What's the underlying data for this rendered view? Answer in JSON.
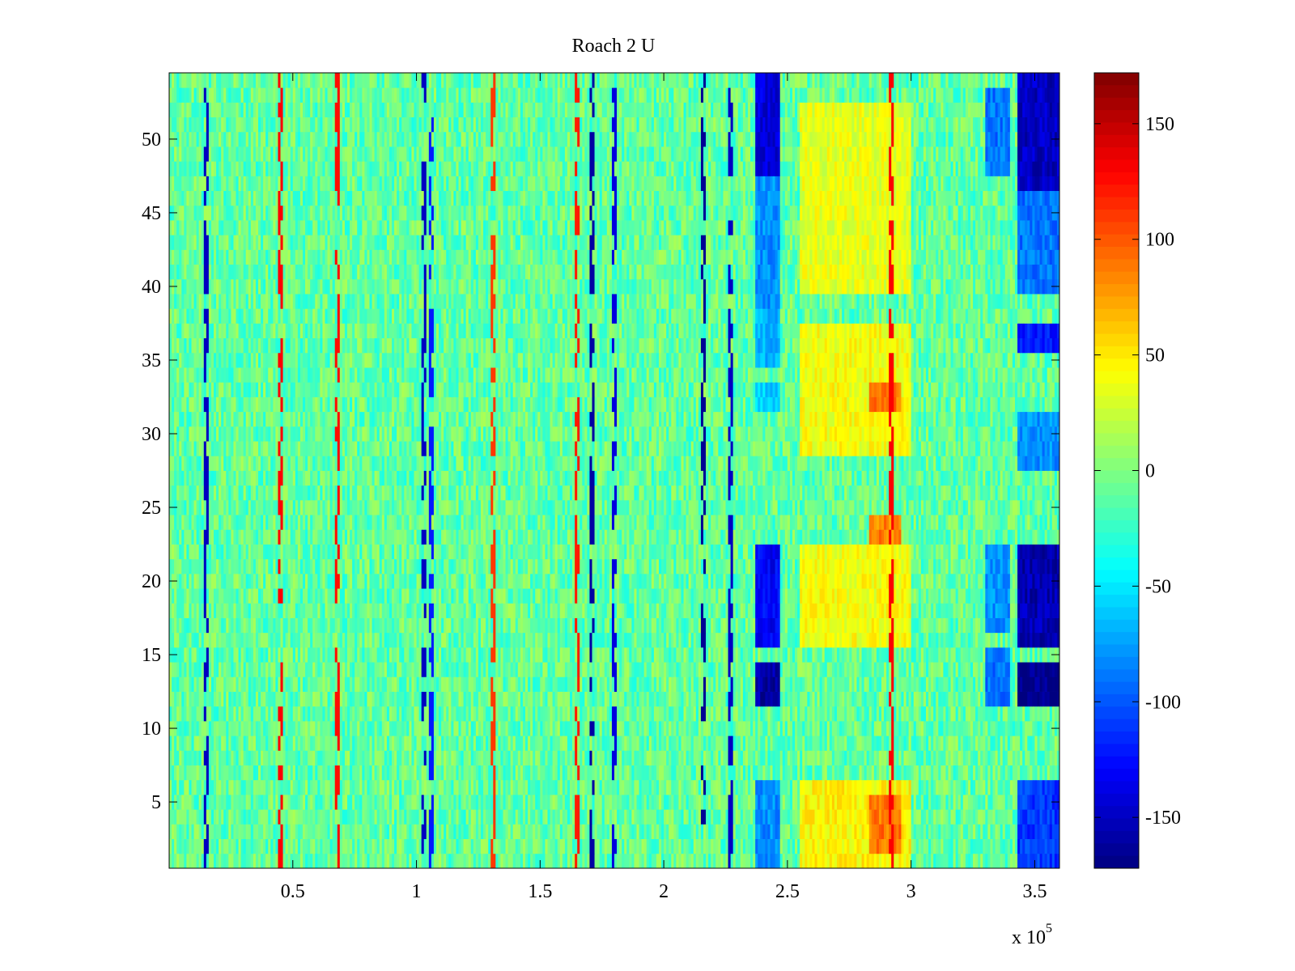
{
  "chart_data": {
    "type": "heatmap",
    "title": "Roach 2 U",
    "xlabel": "",
    "ylabel": "",
    "x_multiplier_label": "x 10",
    "x_multiplier_exp": "5",
    "xlim": [
      0,
      360000
    ],
    "ylim": [
      0.5,
      54.5
    ],
    "rows": 54,
    "columns": 360,
    "colormap": "jet",
    "clim": [
      -172,
      172
    ],
    "x_ticks": [
      {
        "value": 50000,
        "label": "0.5"
      },
      {
        "value": 100000,
        "label": "1"
      },
      {
        "value": 150000,
        "label": "1.5"
      },
      {
        "value": 200000,
        "label": "2"
      },
      {
        "value": 250000,
        "label": "2.5"
      },
      {
        "value": 300000,
        "label": "3"
      },
      {
        "value": 350000,
        "label": "3.5"
      }
    ],
    "y_ticks": [
      {
        "value": 5,
        "label": "5"
      },
      {
        "value": 10,
        "label": "10"
      },
      {
        "value": 15,
        "label": "15"
      },
      {
        "value": 20,
        "label": "20"
      },
      {
        "value": 25,
        "label": "25"
      },
      {
        "value": 30,
        "label": "30"
      },
      {
        "value": 35,
        "label": "35"
      },
      {
        "value": 40,
        "label": "40"
      },
      {
        "value": 45,
        "label": "45"
      },
      {
        "value": 50,
        "label": "50"
      }
    ],
    "colorbar_ticks": [
      {
        "value": 150,
        "label": "150"
      },
      {
        "value": 100,
        "label": "100"
      },
      {
        "value": 50,
        "label": "50"
      },
      {
        "value": 0,
        "label": "0"
      },
      {
        "value": -50,
        "label": "-50"
      },
      {
        "value": -100,
        "label": "-100"
      },
      {
        "value": -150,
        "label": "-150"
      }
    ],
    "baseline_value": -10,
    "noise_amplitude": 25,
    "regions": [
      {
        "x": [
          237000,
          247000
        ],
        "y": [
          48,
          54
        ],
        "value": -140
      },
      {
        "x": [
          237000,
          247000
        ],
        "y": [
          39,
          47
        ],
        "value": -80
      },
      {
        "x": [
          237000,
          247000
        ],
        "y": [
          35,
          38
        ],
        "value": -70
      },
      {
        "x": [
          237000,
          247000
        ],
        "y": [
          32,
          33
        ],
        "value": -60
      },
      {
        "x": [
          237000,
          247000
        ],
        "y": [
          16,
          22
        ],
        "value": -130
      },
      {
        "x": [
          237000,
          247000
        ],
        "y": [
          12,
          14
        ],
        "value": -160
      },
      {
        "x": [
          237000,
          247000
        ],
        "y": [
          1,
          6
        ],
        "value": -80
      },
      {
        "x": [
          255000,
          300000
        ],
        "y": [
          1,
          6
        ],
        "value": 45
      },
      {
        "x": [
          255000,
          300000
        ],
        "y": [
          16,
          22
        ],
        "value": 40
      },
      {
        "x": [
          255000,
          300000
        ],
        "y": [
          29,
          37
        ],
        "value": 40
      },
      {
        "x": [
          255000,
          300000
        ],
        "y": [
          40,
          52
        ],
        "value": 35
      },
      {
        "x": [
          283000,
          296000
        ],
        "y": [
          2,
          5
        ],
        "value": 90
      },
      {
        "x": [
          283000,
          296000
        ],
        "y": [
          32,
          33
        ],
        "value": 90
      },
      {
        "x": [
          283000,
          296000
        ],
        "y": [
          23,
          24
        ],
        "value": 85
      },
      {
        "x": [
          330000,
          340000
        ],
        "y": [
          48,
          53
        ],
        "value": -90
      },
      {
        "x": [
          330000,
          340000
        ],
        "y": [
          17,
          22
        ],
        "value": -80
      },
      {
        "x": [
          330000,
          340000
        ],
        "y": [
          12,
          15
        ],
        "value": -90
      },
      {
        "x": [
          343000,
          361000
        ],
        "y": [
          47,
          54
        ],
        "value": -150
      },
      {
        "x": [
          343000,
          361000
        ],
        "y": [
          40,
          46
        ],
        "value": -90
      },
      {
        "x": [
          343000,
          361000
        ],
        "y": [
          36,
          37
        ],
        "value": -120
      },
      {
        "x": [
          343000,
          361000
        ],
        "y": [
          28,
          31
        ],
        "value": -80
      },
      {
        "x": [
          343000,
          361000
        ],
        "y": [
          16,
          22
        ],
        "value": -155
      },
      {
        "x": [
          343000,
          361000
        ],
        "y": [
          12,
          14
        ],
        "value": -170
      },
      {
        "x": [
          343000,
          361000
        ],
        "y": [
          1,
          6
        ],
        "value": -110
      }
    ],
    "spikes": [
      {
        "x": 15000,
        "value": -150
      },
      {
        "x": 45000,
        "value": 130
      },
      {
        "x": 68000,
        "value": 125
      },
      {
        "x": 103000,
        "value": -150
      },
      {
        "x": 106000,
        "value": -120
      },
      {
        "x": 131000,
        "value": 110
      },
      {
        "x": 165000,
        "value": 120
      },
      {
        "x": 171000,
        "value": -160
      },
      {
        "x": 180000,
        "value": -140
      },
      {
        "x": 216000,
        "value": -165
      },
      {
        "x": 227000,
        "value": -150
      },
      {
        "x": 292000,
        "value": 130
      }
    ]
  }
}
